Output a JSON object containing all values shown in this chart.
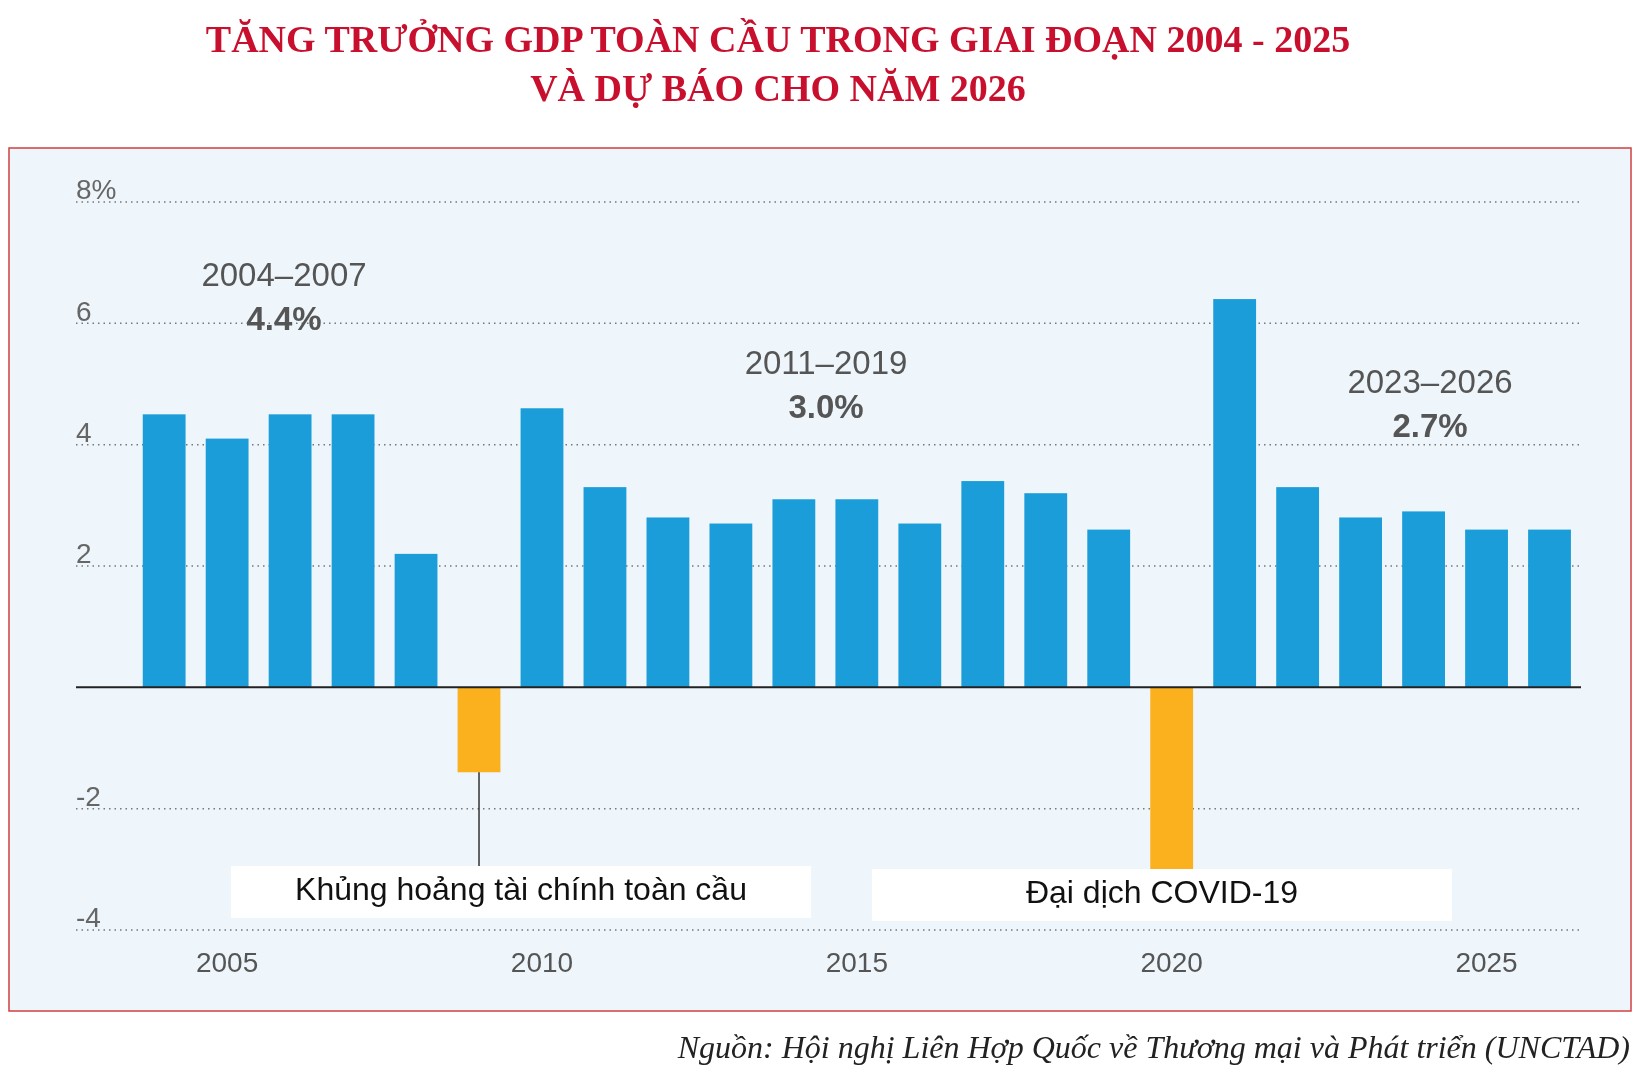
{
  "chart_data": {
    "type": "bar",
    "title": "TĂNG TRƯỞNG GDP TOÀN CẦU TRONG GIAI ĐOẠN 2004 - 2025\nVÀ DỰ BÁO CHO NĂM 2026",
    "x": [
      2004,
      2005,
      2006,
      2007,
      2008,
      2009,
      2010,
      2011,
      2012,
      2013,
      2014,
      2015,
      2016,
      2017,
      2018,
      2019,
      2020,
      2021,
      2022,
      2023,
      2024,
      2025,
      2026
    ],
    "values": [
      4.5,
      4.1,
      4.5,
      4.5,
      2.2,
      -1.4,
      4.6,
      3.3,
      2.8,
      2.7,
      3.1,
      3.1,
      2.7,
      3.4,
      3.2,
      2.6,
      -3.0,
      6.4,
      3.3,
      2.8,
      2.9,
      2.6,
      2.6
    ],
    "colors": [
      "#1b9dd9",
      "#1b9dd9",
      "#1b9dd9",
      "#1b9dd9",
      "#1b9dd9",
      "#fbb01d",
      "#1b9dd9",
      "#1b9dd9",
      "#1b9dd9",
      "#1b9dd9",
      "#1b9dd9",
      "#1b9dd9",
      "#1b9dd9",
      "#1b9dd9",
      "#1b9dd9",
      "#1b9dd9",
      "#fbb01d",
      "#1b9dd9",
      "#1b9dd9",
      "#1b9dd9",
      "#1b9dd9",
      "#1b9dd9",
      "#1b9dd9"
    ],
    "xlim": [
      2002.6,
      2026.5
    ],
    "xticks": [
      2005,
      2010,
      2015,
      2020,
      2025
    ],
    "ylim": [
      -4,
      8
    ],
    "yticks": [
      {
        "value": 8,
        "label": "8%"
      },
      6,
      4,
      2,
      {
        "value": 0,
        "label": null
      },
      -2,
      -4
    ],
    "grid": "y",
    "annotations": [
      "2004–2007\n4.4%",
      "2011–2019\n3.0%",
      "2023–2026\n2.7%",
      {
        "text": "Khủng hoảng tài chính toàn cầu",
        "x": 2009,
        "y": -1.4
      },
      "Đại dịch COVID-19",
      "Nguồn: Hội nghị Liên Hợp Quốc về Thương mại và Phát triển (UNCTAD)"
    ]
  }
}
